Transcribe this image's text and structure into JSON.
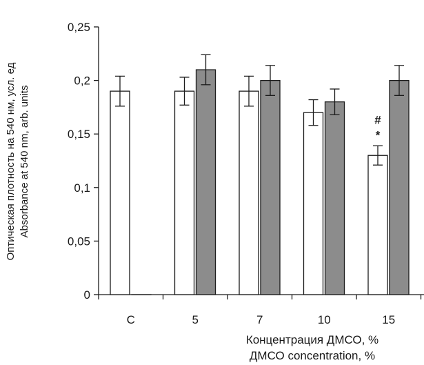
{
  "chart_data": {
    "type": "bar",
    "categories": [
      "C",
      "5",
      "7",
      "10",
      "15"
    ],
    "series": [
      {
        "values": [
          0.19,
          0.19,
          0.19,
          0.17,
          0.13
        ],
        "errors": [
          0.014,
          0.013,
          0.014,
          0.012,
          0.009
        ],
        "color": "#ffffff"
      },
      {
        "values": [
          0.0,
          0.21,
          0.2,
          0.18,
          0.2
        ],
        "errors": [
          0.0,
          0.014,
          0.014,
          0.012,
          0.014
        ],
        "color": "#8c8c8c"
      }
    ],
    "ylim": [
      0,
      0.25
    ],
    "yticks": [
      0,
      0.05,
      0.1,
      0.15,
      0.2,
      0.25
    ],
    "ytick_labels": [
      "0",
      "0,05",
      "0,1",
      "0,15",
      "0,2",
      "0,25"
    ],
    "ylabel_ru": "Оптическая плотность на 540 нм, усл. ед",
    "ylabel_en": "Absorbance at 540 nm, arb. units",
    "xlabel_ru": "Концентрация ДМСО, %",
    "xlabel_en": "ДМСО concentration, %",
    "annotations": [
      {
        "category": "15",
        "series": 0,
        "text": "#"
      },
      {
        "category": "15",
        "series": 0,
        "text": "*"
      }
    ],
    "grid": false,
    "legend": "none"
  }
}
